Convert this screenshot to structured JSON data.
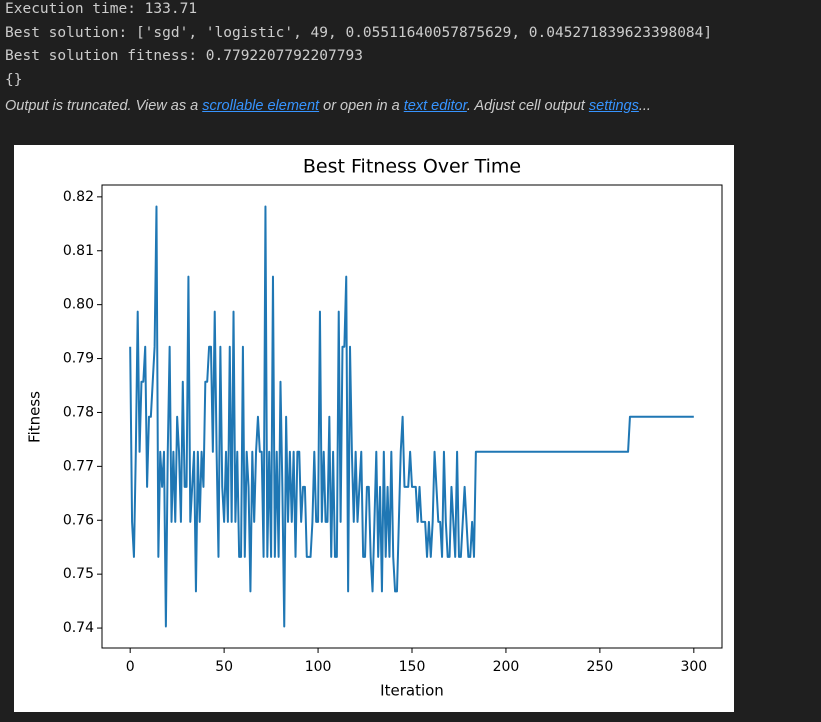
{
  "output": {
    "lines": [
      "Execution time: 133.71",
      "Best solution: ['sgd', 'logistic', 49, 0.05511640057875629, 0.045271839623398084]",
      "Best solution fitness: 0.7792207792207793",
      "{}"
    ],
    "truncated": {
      "prefix": "Output is truncated. View as a",
      "link1": "scrollable element",
      "mid": "or open in a",
      "link2": "text editor",
      "mid2": ". Adjust cell output",
      "link3": "settings",
      "suffix": "..."
    }
  },
  "chart_data": {
    "type": "line",
    "title": "Best Fitness Over Time",
    "xlabel": "Iteration",
    "ylabel": "Fitness",
    "color": "#1f77b4",
    "xlim": [
      -15,
      315
    ],
    "ylim": [
      0.7363,
      0.8222
    ],
    "xticks": [
      0,
      50,
      100,
      150,
      200,
      250,
      300
    ],
    "yticks": [
      0.74,
      0.75,
      0.76,
      0.77,
      0.78,
      0.79,
      {
        "value": 0.8,
        "label": "0.80"
      },
      0.81,
      0.82
    ],
    "x": [
      0,
      1,
      2,
      3,
      4,
      5,
      6,
      7,
      8,
      9,
      10,
      11,
      12,
      13,
      14,
      15,
      16,
      17,
      18,
      19,
      20,
      21,
      22,
      23,
      24,
      25,
      26,
      27,
      28,
      29,
      30,
      31,
      32,
      33,
      34,
      35,
      36,
      37,
      38,
      39,
      40,
      41,
      42,
      43,
      44,
      45,
      46,
      47,
      48,
      49,
      50,
      51,
      52,
      53,
      54,
      55,
      56,
      57,
      58,
      59,
      60,
      61,
      62,
      63,
      64,
      65,
      66,
      67,
      68,
      69,
      70,
      71,
      72,
      73,
      74,
      75,
      76,
      77,
      78,
      79,
      80,
      81,
      82,
      83,
      84,
      85,
      86,
      87,
      88,
      89,
      90,
      91,
      92,
      93,
      94,
      95,
      96,
      97,
      98,
      99,
      100,
      101,
      102,
      103,
      104,
      105,
      106,
      107,
      108,
      109,
      110,
      111,
      112,
      113,
      114,
      115,
      116,
      117,
      118,
      119,
      120,
      121,
      122,
      123,
      124,
      125,
      126,
      127,
      128,
      129,
      130,
      131,
      132,
      133,
      134,
      135,
      136,
      137,
      138,
      139,
      140,
      141,
      142,
      143,
      144,
      145,
      146,
      147,
      148,
      149,
      150,
      151,
      152,
      153,
      154,
      155,
      156,
      157,
      158,
      159,
      160,
      161,
      162,
      163,
      164,
      165,
      166,
      167,
      168,
      169,
      170,
      171,
      172,
      173,
      174,
      175,
      176,
      177,
      178,
      179,
      180,
      181,
      182,
      183,
      184,
      185,
      265,
      266,
      300
    ],
    "values": [
      0.7922,
      0.7597,
      0.7532,
      0.7727,
      0.7987,
      0.7727,
      0.7857,
      0.7857,
      0.7922,
      0.7662,
      0.7792,
      0.7792,
      0.7857,
      0.7922,
      0.8182,
      0.7532,
      0.7727,
      0.7662,
      0.7727,
      0.7403,
      0.7727,
      0.7922,
      0.7597,
      0.7727,
      0.7597,
      0.7792,
      0.7727,
      0.7597,
      0.7857,
      0.7662,
      0.7662,
      0.8052,
      0.7597,
      0.7662,
      0.7727,
      0.7468,
      0.7727,
      0.7597,
      0.7727,
      0.7662,
      0.7857,
      0.7857,
      0.7922,
      0.7922,
      0.7727,
      0.7987,
      0.7727,
      0.7532,
      0.7922,
      0.7662,
      0.7597,
      0.7727,
      0.7597,
      0.7922,
      0.7597,
      0.7987,
      0.7597,
      0.7727,
      0.7532,
      0.7532,
      0.7922,
      0.7532,
      0.7727,
      0.7662,
      0.7468,
      0.7727,
      0.7597,
      0.7727,
      0.7792,
      0.7727,
      0.7727,
      0.7532,
      0.8182,
      0.7532,
      0.7727,
      0.7532,
      0.8052,
      0.7532,
      0.7727,
      0.7532,
      0.7857,
      0.7662,
      0.7403,
      0.7792,
      0.7597,
      0.7727,
      0.7597,
      0.7727,
      0.7532,
      0.7727,
      0.7727,
      0.7597,
      0.7662,
      0.7662,
      0.7532,
      0.7532,
      0.7532,
      0.7597,
      0.7727,
      0.7597,
      0.7597,
      0.7987,
      0.7597,
      0.7727,
      0.7597,
      0.7597,
      0.7792,
      0.7532,
      0.7727,
      0.7532,
      0.7532,
      0.7987,
      0.7597,
      0.7922,
      0.7922,
      0.8052,
      0.7468,
      0.7922,
      0.7727,
      0.7597,
      0.7727,
      0.7597,
      0.7662,
      0.7727,
      0.7532,
      0.7532,
      0.7662,
      0.7662,
      0.7532,
      0.7468,
      0.7597,
      0.7727,
      0.7532,
      0.7662,
      0.7468,
      0.7727,
      0.7532,
      0.7662,
      0.7532,
      0.7727,
      0.7532,
      0.7468,
      0.7468,
      0.7597,
      0.7727,
      0.7792,
      0.7662,
      0.7662,
      0.7662,
      0.7727,
      0.7662,
      0.7662,
      0.7662,
      0.7597,
      0.7662,
      0.7597,
      0.7597,
      0.7597,
      0.7532,
      0.7597,
      0.7532,
      0.7597,
      0.7727,
      0.7662,
      0.7597,
      0.7597,
      0.7532,
      0.7727,
      0.7597,
      0.7532,
      0.7532,
      0.7662,
      0.7597,
      0.7532,
      0.7727,
      0.7532,
      0.7532,
      0.7597,
      0.7662,
      0.7597,
      0.7532,
      0.7532,
      0.7597,
      0.7532,
      0.7727,
      0.7727,
      0.7727,
      0.7792,
      0.7792
    ]
  }
}
